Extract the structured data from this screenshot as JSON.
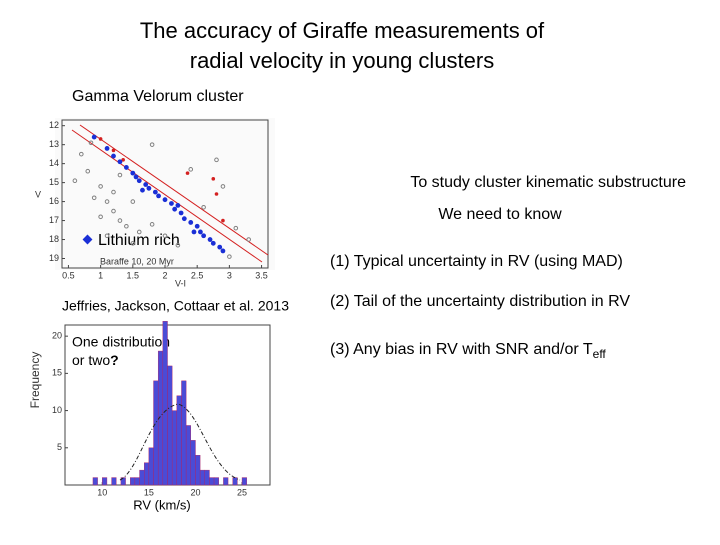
{
  "title": [
    "The accuracy of Giraffe measurements of",
    "radial velocity  in young clusters"
  ],
  "subtitle": "Gamma Velorum cluster",
  "points": {
    "goal": "To study cluster  kinematic substructure",
    "need": "We need to know",
    "items": [
      "(1) Typical uncertainty in RV  (using MAD)",
      "(2) Tail of the uncertainty distribution in RV",
      "(3) Any bias in RV with SNR and/or T"
    ],
    "subscript": "eff"
  },
  "citation": "Jeffries, Jackson, Cottaar et al. 2013",
  "cmd_chart": {
    "type": "scatter",
    "xlabel": "V-I",
    "ylabel": "V",
    "model_label": "Baraffe 10, 20 Myr",
    "xlim": [
      0.4,
      3.6
    ],
    "ylim": [
      11.7,
      19.5
    ],
    "y_inverted": true,
    "xticks": [
      0.5,
      1,
      1.5,
      2,
      2.5,
      3,
      3.5
    ],
    "yticks": [
      12,
      13,
      14,
      15,
      16,
      17,
      18,
      19
    ],
    "series": [
      {
        "color": "#808080",
        "x": [
          0.7,
          0.8,
          1.0,
          1.1,
          1.2,
          1.3,
          1.4,
          1.0,
          1.5,
          1.6,
          1.8,
          2.0,
          0.9,
          1.2,
          2.2,
          2.6,
          2.9,
          3.1,
          3.3,
          2.4,
          1.8,
          0.6,
          1.1,
          1.5,
          3.0,
          2.8,
          1.3,
          0.85
        ],
        "values": [
          13.5,
          14.4,
          15.2,
          16.0,
          16.5,
          17.0,
          17.3,
          16.8,
          16.0,
          17.6,
          17.2,
          17.8,
          15.8,
          15.5,
          18.3,
          16.3,
          15.2,
          17.4,
          18.0,
          14.3,
          13.0,
          14.9,
          17.8,
          18.2,
          18.9,
          13.8,
          14.6,
          12.9
        ]
      },
      {
        "color": "#d42020",
        "x": [
          1.0,
          1.2,
          1.35,
          2.35,
          2.75,
          2.8,
          2.9
        ],
        "values": [
          12.7,
          13.3,
          13.8,
          14.5,
          14.8,
          15.6,
          17.0
        ]
      },
      {
        "name": "Lithium rich",
        "color": "#1a2fd6",
        "x": [
          0.9,
          1.1,
          1.2,
          1.3,
          1.4,
          1.5,
          1.55,
          1.6,
          1.7,
          1.75,
          1.85,
          1.9,
          2.0,
          2.1,
          2.15,
          2.25,
          2.3,
          2.4,
          2.5,
          2.55,
          2.6,
          2.7,
          2.75,
          2.85,
          2.9,
          1.65,
          2.2,
          2.45
        ],
        "values": [
          12.6,
          13.2,
          13.6,
          13.9,
          14.2,
          14.5,
          14.7,
          14.9,
          15.1,
          15.3,
          15.5,
          15.7,
          15.9,
          16.1,
          16.4,
          16.6,
          16.9,
          17.1,
          17.3,
          17.6,
          17.8,
          18.0,
          18.2,
          18.4,
          18.6,
          15.4,
          16.2,
          17.6
        ]
      }
    ]
  },
  "hist_chart": {
    "type": "histogram",
    "xlabel": "RV (km/s)",
    "ylabel": "Frequency",
    "note": [
      "One distribution",
      "or two",
      "?"
    ],
    "color": "#4b4bd6",
    "xlim": [
      6,
      28
    ],
    "ylim": [
      0,
      21.5
    ],
    "xticks": [
      10,
      15,
      20,
      25
    ],
    "yticks": [
      5,
      10,
      15,
      20
    ],
    "bins": [
      8,
      8.5,
      9,
      9.5,
      10,
      10.5,
      11,
      11.5,
      12,
      12.5,
      13,
      13.5,
      14,
      14.5,
      15,
      15.5,
      16,
      16.5,
      17,
      17.5,
      18,
      18.5,
      19,
      19.5,
      20,
      20.5,
      21,
      21.5,
      22,
      22.5,
      23,
      23.5,
      24,
      24.5,
      25,
      25.5,
      26
    ],
    "values": [
      0,
      0,
      1,
      0,
      1,
      0,
      1,
      0,
      1,
      0,
      1,
      1,
      2,
      3,
      5,
      14,
      18,
      22,
      16,
      10,
      12,
      14,
      8,
      6,
      4,
      2,
      2,
      1,
      1,
      0,
      1,
      0,
      1,
      0,
      1,
      0
    ]
  }
}
